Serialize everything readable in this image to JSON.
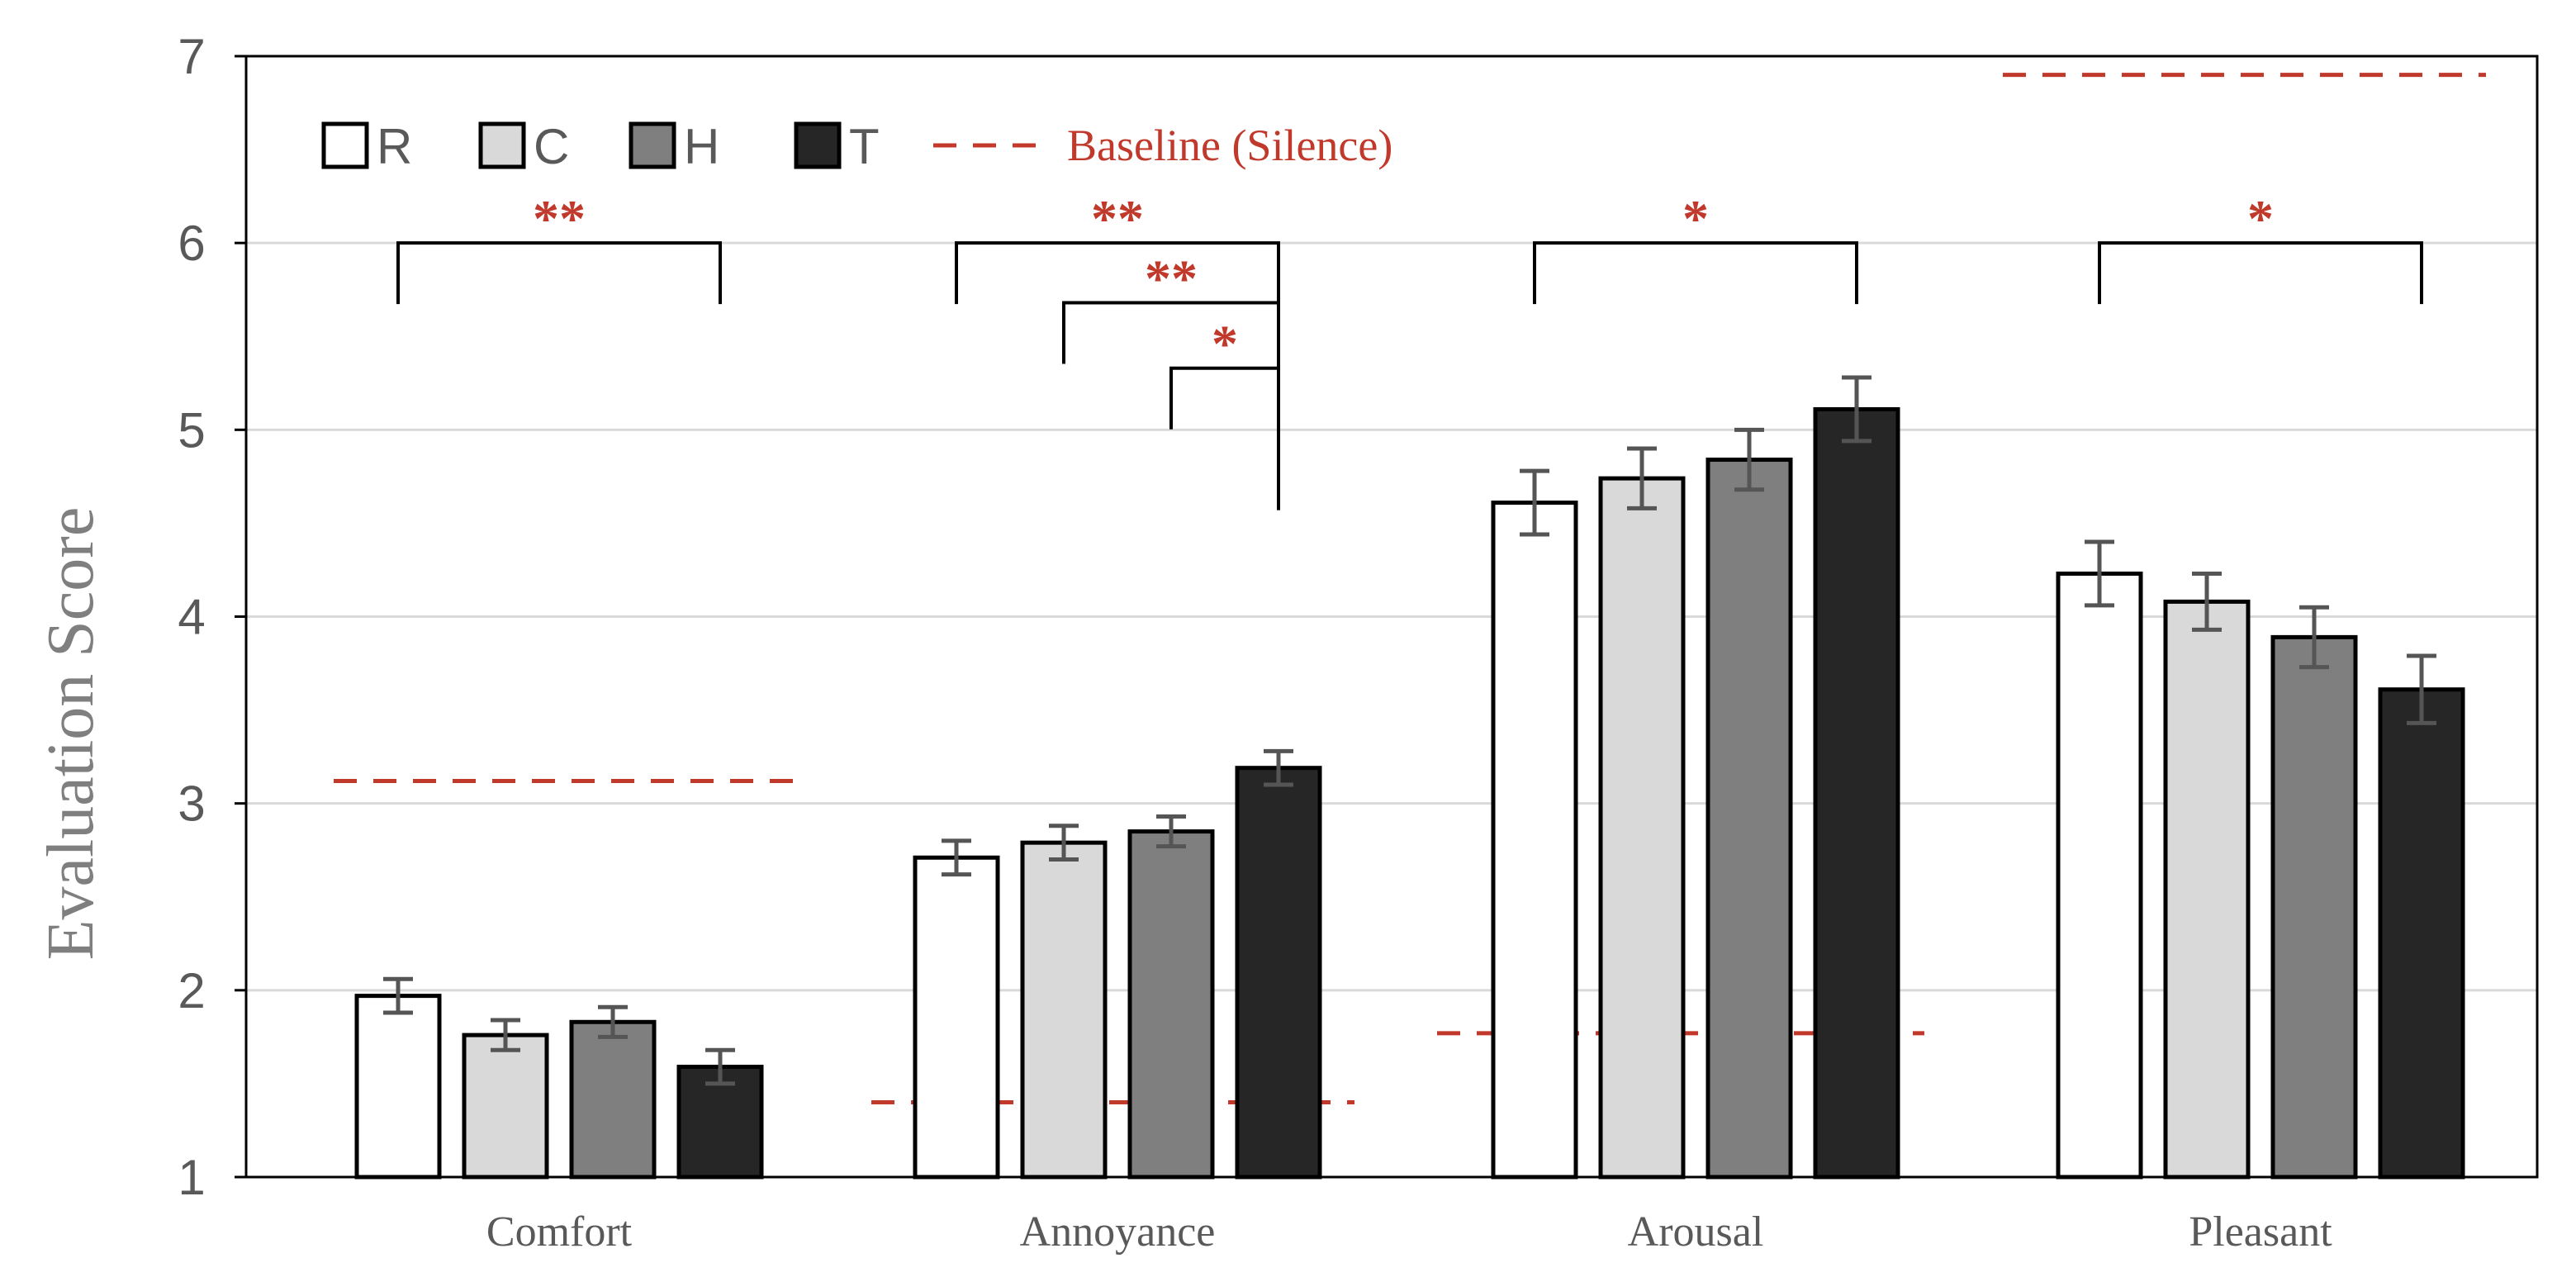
{
  "chart_data": {
    "type": "bar",
    "title": "",
    "xlabel": "",
    "ylabel": "Evaluation Score",
    "ylim": [
      1,
      7
    ],
    "yticks": [
      1,
      2,
      3,
      4,
      5,
      6,
      7
    ],
    "grid": true,
    "legend_position": "top-left",
    "categories": [
      "Comfort",
      "Annoyance",
      "Arousal",
      "Pleasant"
    ],
    "series": [
      {
        "name": "R",
        "color": "#ffffff",
        "values": [
          1.97,
          2.71,
          4.61,
          4.23
        ],
        "errors": [
          0.09,
          0.09,
          0.17,
          0.17
        ]
      },
      {
        "name": "C",
        "color": "#d9d9d9",
        "values": [
          1.76,
          2.79,
          4.74,
          4.08
        ],
        "errors": [
          0.08,
          0.09,
          0.16,
          0.15
        ]
      },
      {
        "name": "H",
        "color": "#7f7f7f",
        "values": [
          1.83,
          2.85,
          4.84,
          3.89
        ],
        "errors": [
          0.08,
          0.08,
          0.16,
          0.16
        ]
      },
      {
        "name": "T",
        "color": "#262626",
        "values": [
          1.59,
          3.19,
          5.11,
          3.61
        ],
        "errors": [
          0.09,
          0.09,
          0.17,
          0.18
        ]
      }
    ],
    "baseline": {
      "label": "Baseline (Silence)",
      "color": "#c0392b",
      "values": [
        3.12,
        1.4,
        1.77,
        6.9
      ]
    },
    "significance": [
      {
        "category": "Comfort",
        "from": "R",
        "to": "T",
        "label": "**",
        "level": 6.0
      },
      {
        "category": "Annoyance",
        "from": "R",
        "to": "T",
        "label": "**",
        "level": 6.0
      },
      {
        "category": "Annoyance",
        "from": "C",
        "to": "T",
        "label": "**",
        "level": 5.68
      },
      {
        "category": "Annoyance",
        "from": "H",
        "to": "T",
        "label": "*",
        "level": 5.33
      },
      {
        "category": "Arousal",
        "from": "R",
        "to": "T",
        "label": "*",
        "level": 6.0
      },
      {
        "category": "Pleasant",
        "from": "R",
        "to": "T",
        "label": "*",
        "level": 6.0
      }
    ],
    "sig_color": "#c0392b"
  }
}
